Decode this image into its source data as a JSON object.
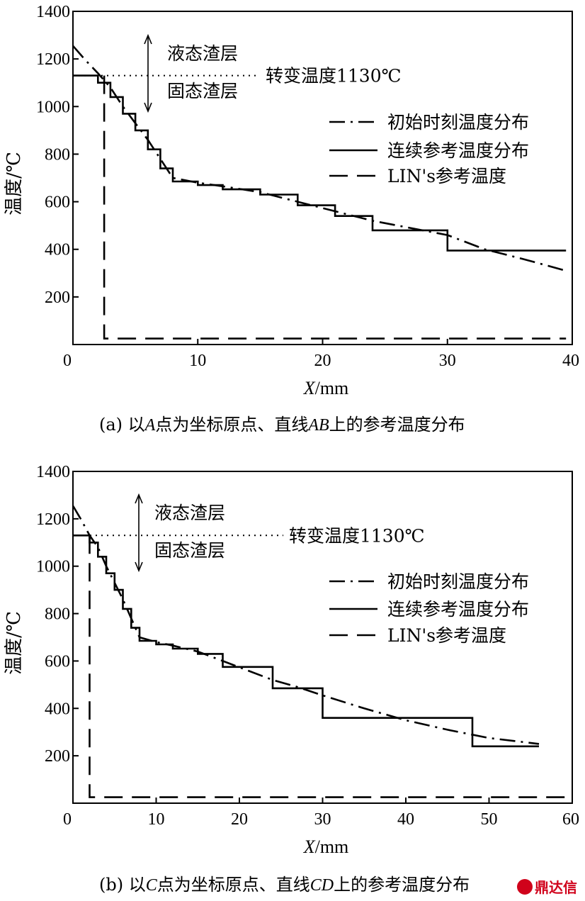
{
  "chart_data": [
    {
      "type": "line",
      "caption": {
        "prefix": "(a) 以",
        "point": "A",
        "middle": "点为坐标原点、直线",
        "line": "AB",
        "suffix": "上的参考温度分布"
      },
      "xlabel_var": "X",
      "xlabel_unit": "/mm",
      "ylabel": "温度/℃",
      "xlim": [
        0,
        40
      ],
      "ylim": [
        0,
        1400
      ],
      "x_ticks": [
        0,
        10,
        20,
        30,
        40
      ],
      "y_ticks": [
        0,
        200,
        400,
        600,
        800,
        1000,
        1200,
        1400
      ],
      "transition_label": "转变温度1130℃",
      "transition_value": 1130,
      "liquid_label": "液态渣层",
      "solid_label": "固态渣层",
      "legend_position": "right",
      "series": [
        {
          "name": "初始时刻温度分布",
          "style": "dashdot",
          "x": [
            0,
            1,
            2,
            3,
            4,
            5,
            6,
            7,
            8,
            10,
            12,
            15,
            18,
            21,
            24,
            27,
            30,
            33,
            36,
            39.5
          ],
          "y": [
            1255,
            1195,
            1140,
            1080,
            1000,
            930,
            860,
            780,
            700,
            680,
            665,
            640,
            600,
            560,
            520,
            490,
            460,
            400,
            360,
            310
          ]
        },
        {
          "name": "连续参考温度分布",
          "style": "solid",
          "x": [
            0,
            2,
            2,
            3,
            3,
            4,
            4,
            5,
            5,
            6,
            6,
            7,
            7,
            8,
            8,
            10,
            10,
            12,
            12,
            15,
            15,
            18,
            18,
            21,
            21,
            24,
            24,
            30,
            30,
            39.5
          ],
          "y": [
            1130,
            1130,
            1100,
            1100,
            1040,
            1040,
            970,
            970,
            900,
            900,
            820,
            820,
            740,
            740,
            685,
            685,
            670,
            670,
            652,
            652,
            630,
            630,
            585,
            585,
            540,
            540,
            480,
            480,
            395,
            395
          ]
        },
        {
          "name": "LIN's参考温度",
          "style": "dashed",
          "x": [
            2.5,
            2.5,
            39.5
          ],
          "y": [
            1130,
            25,
            25
          ]
        }
      ]
    },
    {
      "type": "line",
      "caption": {
        "prefix": "(b) 以",
        "point": "C",
        "middle": "点为坐标原点、直线",
        "line": "CD",
        "suffix": "上的参考温度分布"
      },
      "xlabel_var": "X",
      "xlabel_unit": "/mm",
      "ylabel": "温度/℃",
      "xlim": [
        0,
        60
      ],
      "ylim": [
        0,
        1400
      ],
      "x_ticks": [
        0,
        10,
        20,
        30,
        40,
        50,
        60
      ],
      "y_ticks": [
        0,
        200,
        400,
        600,
        800,
        1000,
        1200,
        1400
      ],
      "transition_label": "转变温度1130℃",
      "transition_value": 1130,
      "liquid_label": "液态渣层",
      "solid_label": "固态渣层",
      "legend_position": "right",
      "series": [
        {
          "name": "初始时刻温度分布",
          "style": "dashdot",
          "x": [
            0,
            1,
            2,
            3,
            4,
            5,
            6,
            7,
            8,
            10,
            12,
            15,
            18,
            21,
            24,
            27,
            30,
            35,
            40,
            45,
            50,
            56
          ],
          "y": [
            1255,
            1195,
            1130,
            1080,
            1000,
            930,
            860,
            780,
            700,
            680,
            665,
            640,
            600,
            560,
            520,
            490,
            455,
            400,
            350,
            310,
            275,
            250
          ]
        },
        {
          "name": "连续参考温度分布",
          "style": "solid",
          "x": [
            0,
            2,
            2,
            3,
            3,
            4,
            4,
            5,
            5,
            6,
            6,
            7,
            7,
            8,
            8,
            10,
            10,
            12,
            12,
            15,
            15,
            18,
            18,
            24,
            24,
            30,
            30,
            48,
            48,
            56
          ],
          "y": [
            1130,
            1130,
            1100,
            1100,
            1040,
            1040,
            970,
            970,
            900,
            900,
            820,
            820,
            740,
            740,
            685,
            685,
            670,
            670,
            652,
            652,
            630,
            630,
            575,
            575,
            485,
            485,
            360,
            360,
            240,
            240
          ]
        },
        {
          "name": "LIN's参考温度",
          "style": "dashed",
          "x": [
            2,
            2,
            60
          ],
          "y": [
            1130,
            25,
            25
          ]
        }
      ]
    }
  ],
  "watermark": "鼎达信"
}
